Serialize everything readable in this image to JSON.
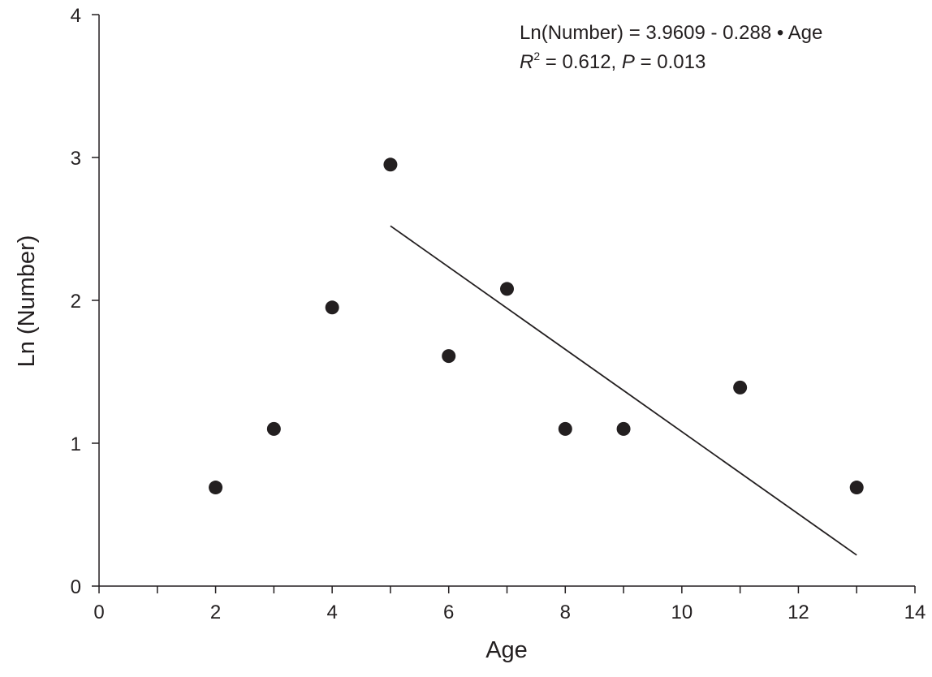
{
  "chart_data": {
    "type": "scatter",
    "title": "",
    "xlabel": "Age",
    "ylabel": "Ln (Number)",
    "xlim": [
      0,
      14
    ],
    "ylim": [
      0,
      4
    ],
    "xticks": [
      0,
      2,
      4,
      6,
      8,
      10,
      12,
      14
    ],
    "yticks": [
      0,
      1,
      2,
      3,
      4
    ],
    "grid": false,
    "points": [
      {
        "x": 2,
        "y": 0.69
      },
      {
        "x": 3,
        "y": 1.1
      },
      {
        "x": 4,
        "y": 1.95
      },
      {
        "x": 5,
        "y": 2.95
      },
      {
        "x": 6,
        "y": 1.61
      },
      {
        "x": 7,
        "y": 2.08
      },
      {
        "x": 8,
        "y": 1.1
      },
      {
        "x": 9,
        "y": 1.1
      },
      {
        "x": 11,
        "y": 1.39
      },
      {
        "x": 13,
        "y": 0.69
      }
    ],
    "fit_line": {
      "intercept": 3.9609,
      "slope": -0.288,
      "x_range": [
        5,
        13
      ]
    },
    "annotations": {
      "equation": "Ln(Number) = 3.9609 - 0.288 • Age",
      "r2_label": "R",
      "r2_sup": "2",
      "r2_value": " = 0.612, ",
      "p_label": "P",
      "p_value": " = 0.013"
    },
    "colors": {
      "ink": "#231f20"
    }
  }
}
